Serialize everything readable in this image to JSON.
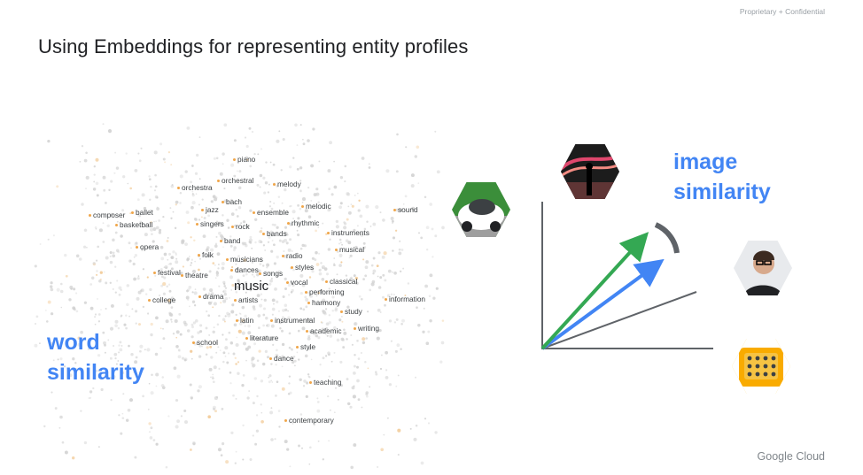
{
  "header": {
    "confidential": "Proprietary + Confidential",
    "title": "Using Embeddings for representing entity profiles"
  },
  "word_cloud": {
    "center_word": "music",
    "words": [
      "piano",
      "orchestral",
      "melody",
      "orchestra",
      "bach",
      "melodic",
      "sound",
      "composer",
      "ballet",
      "jazz",
      "ensemble",
      "basketball",
      "singers",
      "rock",
      "rhythmic",
      "bands",
      "instruments",
      "band",
      "musical",
      "opera",
      "folk",
      "radio",
      "musicians",
      "styles",
      "dances",
      "songs",
      "festival",
      "theatre",
      "vocal",
      "classical",
      "performing",
      "drama",
      "artists",
      "college",
      "information",
      "harmony",
      "study",
      "latin",
      "instrumental",
      "writing",
      "academic",
      "school",
      "literature",
      "style",
      "dance",
      "teaching",
      "contemporary"
    ]
  },
  "labels": {
    "word_line1": "word",
    "word_line2": "similarity",
    "image_line1": "image",
    "image_line2": "similarity"
  },
  "images": {
    "car": "self-driving-car-image",
    "stage": "concert-stage-image",
    "person": "person-portrait-image",
    "device": "yellow-keypad-device-image"
  },
  "footer": {
    "brand": "Google Cloud"
  },
  "colors": {
    "blue": "#4285f4",
    "green": "#34a853",
    "gray_axis": "#5f6368",
    "dot_orange": "#f0a64a"
  }
}
